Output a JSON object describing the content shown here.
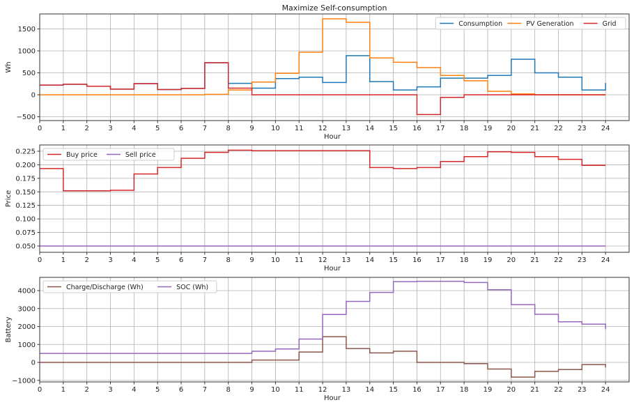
{
  "chart_data": [
    {
      "type": "line",
      "title": "Maximize Self-consumption",
      "xlabel": "Hour",
      "ylabel": "Wh",
      "xlim": [
        0,
        25
      ],
      "ylim": [
        -587,
        1841
      ],
      "xticks": [
        0,
        1,
        2,
        3,
        4,
        5,
        6,
        7,
        8,
        9,
        10,
        11,
        12,
        13,
        14,
        15,
        16,
        17,
        18,
        19,
        20,
        21,
        22,
        23,
        24
      ],
      "yticks": [
        -500,
        0,
        500,
        1000,
        1500
      ],
      "grid": true,
      "legend": {
        "placement": "top-right",
        "ncol": 3
      },
      "step": "post",
      "x": [
        0,
        1,
        2,
        3,
        4,
        5,
        6,
        7,
        8,
        9,
        10,
        11,
        12,
        13,
        14,
        15,
        16,
        17,
        18,
        19,
        20,
        21,
        22,
        23,
        24
      ],
      "series": [
        {
          "name": "Consumption",
          "color": "#1f77b4",
          "values": [
            220,
            240,
            195,
            130,
            255,
            120,
            145,
            730,
            260,
            150,
            370,
            400,
            280,
            890,
            300,
            110,
            180,
            380,
            380,
            440,
            810,
            500,
            400,
            110,
            270
          ]
        },
        {
          "name": "PV Generation",
          "color": "#ff7f0e",
          "values": [
            0,
            0,
            0,
            0,
            0,
            0,
            0,
            10,
            110,
            290,
            490,
            970,
            1730,
            1650,
            840,
            740,
            620,
            440,
            320,
            80,
            20,
            0,
            0,
            0,
            0
          ]
        },
        {
          "name": "Grid",
          "color": "#d62728",
          "values": [
            220,
            240,
            195,
            130,
            255,
            120,
            145,
            730,
            150,
            0,
            0,
            0,
            0,
            0,
            0,
            0,
            -450,
            -60,
            0,
            0,
            0,
            0,
            0,
            0,
            0
          ]
        }
      ]
    },
    {
      "type": "line",
      "title": "",
      "xlabel": "Hour",
      "ylabel": "Price",
      "xlim": [
        0,
        25
      ],
      "ylim": [
        0.0384,
        0.2366
      ],
      "xticks": [
        0,
        1,
        2,
        3,
        4,
        5,
        6,
        7,
        8,
        9,
        10,
        11,
        12,
        13,
        14,
        15,
        16,
        17,
        18,
        19,
        20,
        21,
        22,
        23,
        24
      ],
      "yticks": [
        0.05,
        0.075,
        0.1,
        0.125,
        0.15,
        0.175,
        0.2,
        0.225
      ],
      "ytick_decimals": 3,
      "grid": true,
      "legend": {
        "placement": "top-left",
        "ncol": 2
      },
      "step": "post",
      "x": [
        0,
        1,
        2,
        3,
        4,
        5,
        6,
        7,
        8,
        9,
        10,
        11,
        12,
        13,
        14,
        15,
        16,
        17,
        18,
        19,
        20,
        21,
        22,
        23,
        24
      ],
      "series": [
        {
          "name": "Buy price",
          "color": "#d62728",
          "values": [
            0.193,
            0.152,
            0.152,
            0.153,
            0.183,
            0.195,
            0.212,
            0.223,
            0.227,
            0.226,
            0.226,
            0.226,
            0.226,
            0.226,
            0.195,
            0.193,
            0.195,
            0.206,
            0.215,
            0.224,
            0.223,
            0.215,
            0.21,
            0.199,
            0.199
          ]
        },
        {
          "name": "Sell price",
          "color": "#9467bd",
          "values": [
            0.05,
            0.05,
            0.05,
            0.05,
            0.05,
            0.05,
            0.05,
            0.05,
            0.05,
            0.05,
            0.05,
            0.05,
            0.05,
            0.05,
            0.05,
            0.05,
            0.05,
            0.05,
            0.05,
            0.05,
            0.05,
            0.05,
            0.05,
            0.05,
            0.05
          ]
        }
      ]
    },
    {
      "type": "line",
      "title": "",
      "xlabel": "Hour",
      "ylabel": "Battery",
      "xlim": [
        0,
        25
      ],
      "ylim": [
        -1087,
        4738
      ],
      "xticks": [
        0,
        1,
        2,
        3,
        4,
        5,
        6,
        7,
        8,
        9,
        10,
        11,
        12,
        13,
        14,
        15,
        16,
        17,
        18,
        19,
        20,
        21,
        22,
        23,
        24
      ],
      "yticks": [
        -1000,
        0,
        1000,
        2000,
        3000,
        4000
      ],
      "grid": true,
      "legend": {
        "placement": "top-left",
        "ncol": 2
      },
      "step": "post",
      "x": [
        0,
        1,
        2,
        3,
        4,
        5,
        6,
        7,
        8,
        9,
        10,
        11,
        12,
        13,
        14,
        15,
        16,
        17,
        18,
        19,
        20,
        21,
        22,
        23,
        24
      ],
      "series": [
        {
          "name": "Charge/Discharge (Wh)",
          "color": "#8c564b",
          "values": [
            0,
            0,
            0,
            0,
            0,
            0,
            0,
            0,
            0,
            130,
            130,
            580,
            1430,
            770,
            530,
            620,
            0,
            0,
            -70,
            -370,
            -820,
            -500,
            -400,
            -120,
            -280
          ]
        },
        {
          "name": "SOC (Wh)",
          "color": "#9467bd",
          "values": [
            500,
            500,
            500,
            500,
            500,
            500,
            500,
            500,
            500,
            620,
            750,
            1300,
            2670,
            3400,
            3900,
            4500,
            4520,
            4520,
            4450,
            4050,
            3220,
            2680,
            2260,
            2130,
            1850
          ]
        }
      ]
    }
  ]
}
